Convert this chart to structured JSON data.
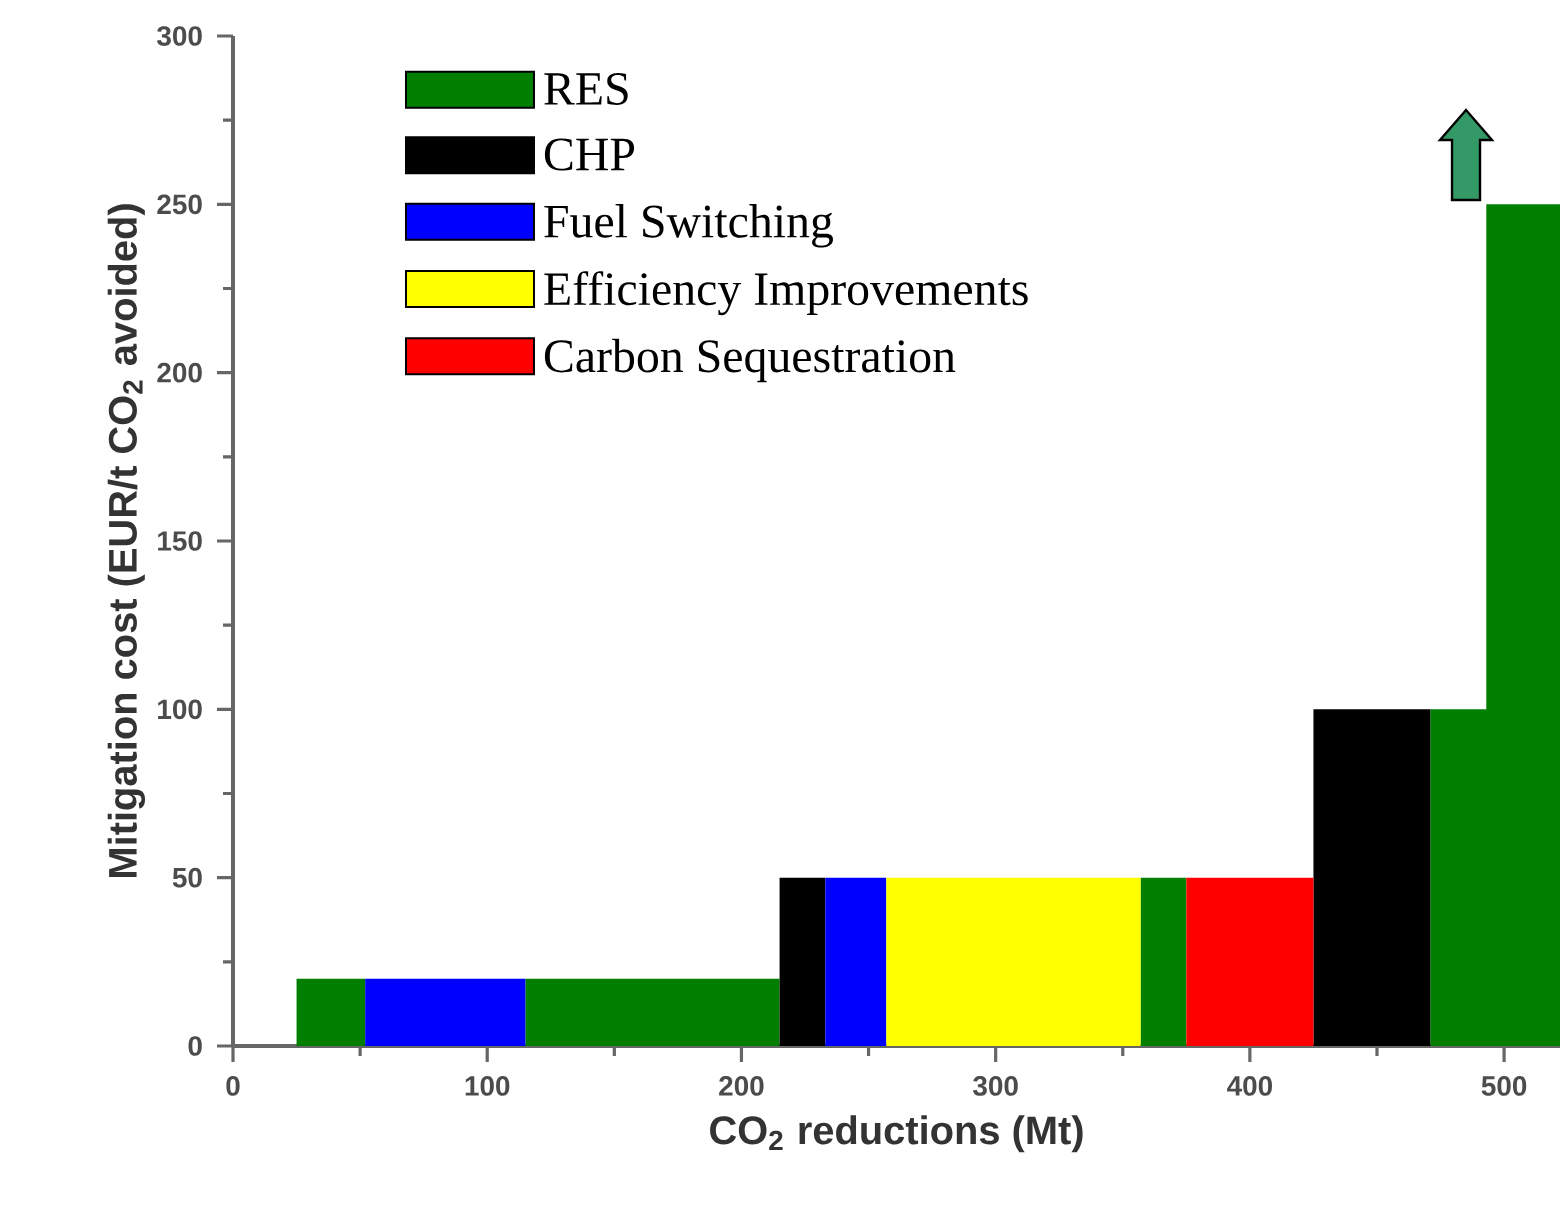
{
  "chart_data": {
    "type": "area",
    "xlabel": "CO$_{2}$ reductions (Mt)",
    "ylabel": "Mitigation cost (EUR/t CO$_{2}$ avoided)",
    "xlim": [
      0,
      522
    ],
    "ylim": [
      0,
      300
    ],
    "xticks": [
      0,
      100,
      200,
      300,
      400,
      500
    ],
    "yticks": [
      0,
      50,
      100,
      150,
      200,
      250,
      300
    ],
    "legend": "top left",
    "series": [
      {
        "name": "RES",
        "color": "#007f00",
        "x": [
          25,
          25,
          52,
          52,
          null,
          115,
          115,
          215,
          215,
          null,
          357,
          357,
          375,
          375,
          null,
          471,
          471,
          493,
          493,
          522,
          522
        ],
        "values": [
          0,
          20,
          20,
          0,
          null,
          0,
          20,
          20,
          0,
          null,
          0,
          50,
          50,
          0,
          null,
          0,
          100,
          100,
          250,
          250,
          0
        ]
      },
      {
        "name": "CHP",
        "color": "#000000",
        "x": [
          215,
          215,
          233,
          233,
          null,
          425,
          425,
          471,
          471
        ],
        "values": [
          0,
          50,
          50,
          0,
          null,
          0,
          100,
          100,
          0
        ]
      },
      {
        "name": "Fuel Switching",
        "color": "#0000ff",
        "x": [
          52,
          52,
          115,
          115,
          null,
          233,
          233,
          257,
          257
        ],
        "values": [
          0,
          20,
          20,
          0,
          null,
          0,
          50,
          50,
          0
        ]
      },
      {
        "name": "Efficiency Improvements",
        "color": "#ffff00",
        "x": [
          257,
          257,
          357,
          357
        ],
        "values": [
          0,
          50,
          50,
          0
        ]
      },
      {
        "name": "Carbon Sequestration",
        "color": "#ff0000",
        "x": [
          375,
          375,
          425,
          425
        ],
        "values": [
          0,
          50,
          50,
          0
        ]
      }
    ]
  }
}
